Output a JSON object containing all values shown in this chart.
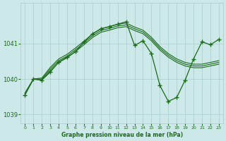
{
  "title": "Graphe pression niveau de la mer (hPa)",
  "bg_color": "#cce8e8",
  "grid_color": "#aacccc",
  "line_color": "#1a6b1a",
  "text_color": "#1a6b1a",
  "xlim": [
    -0.5,
    23.5
  ],
  "ylim": [
    1038.75,
    1042.15
  ],
  "yticks": [
    1039,
    1040,
    1041
  ],
  "smooth1_y": [
    1039.6,
    1040.0,
    1040.03,
    1040.33,
    1040.57,
    1040.7,
    1040.88,
    1041.07,
    1041.27,
    1041.42,
    1041.48,
    1041.55,
    1041.58,
    1041.47,
    1041.38,
    1041.18,
    1040.92,
    1040.72,
    1040.57,
    1040.47,
    1040.42,
    1040.42,
    1040.47,
    1040.52
  ],
  "smooth2_y": [
    1039.6,
    1040.0,
    1040.0,
    1040.28,
    1040.52,
    1040.65,
    1040.83,
    1041.02,
    1041.22,
    1041.37,
    1041.43,
    1041.5,
    1041.53,
    1041.42,
    1041.33,
    1041.13,
    1040.87,
    1040.67,
    1040.52,
    1040.42,
    1040.37,
    1040.37,
    1040.42,
    1040.47
  ],
  "smooth3_y": [
    1039.6,
    1040.0,
    1039.97,
    1040.23,
    1040.47,
    1040.6,
    1040.78,
    1040.97,
    1041.17,
    1041.32,
    1041.38,
    1041.45,
    1041.48,
    1041.37,
    1041.28,
    1041.08,
    1040.82,
    1040.62,
    1040.47,
    1040.37,
    1040.32,
    1040.32,
    1040.37,
    1040.42
  ],
  "main_x": [
    0,
    1,
    2,
    3,
    4,
    5,
    6,
    7,
    8,
    9,
    10,
    11,
    12,
    13,
    14,
    15,
    16,
    17,
    18,
    19,
    20,
    21,
    22,
    23
  ],
  "main_y": [
    1039.55,
    1040.0,
    1039.97,
    1040.2,
    1040.48,
    1040.62,
    1040.77,
    1041.05,
    1041.28,
    1041.42,
    1041.48,
    1041.55,
    1041.62,
    1040.95,
    1041.08,
    1040.72,
    1039.82,
    1039.37,
    1039.48,
    1039.97,
    1040.57,
    1041.05,
    1040.97,
    1041.12
  ]
}
